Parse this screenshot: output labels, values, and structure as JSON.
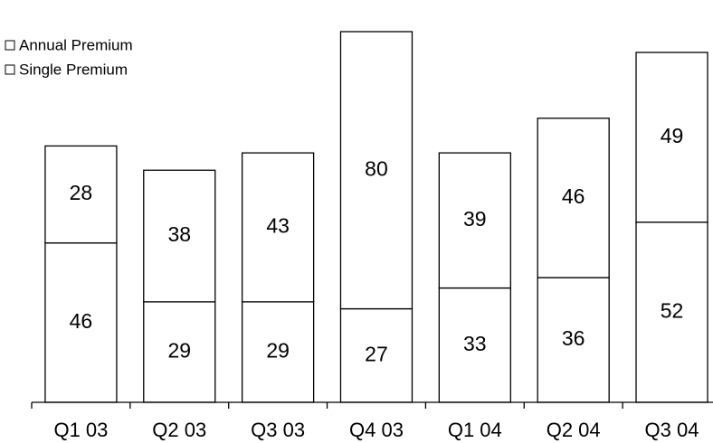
{
  "chart_data": {
    "type": "bar",
    "stacked": true,
    "categories": [
      "Q1 03",
      "Q2 03",
      "Q3 03",
      "Q4 03",
      "Q1 04",
      "Q2 04",
      "Q3 04"
    ],
    "series": [
      {
        "name": "Single Premium",
        "values": [
          46,
          29,
          29,
          27,
          33,
          36,
          52
        ]
      },
      {
        "name": "Annual Premium",
        "values": [
          28,
          38,
          43,
          80,
          39,
          46,
          49
        ]
      }
    ],
    "legend": {
      "placement": "top-left",
      "order": [
        "Annual Premium",
        "Single Premium"
      ]
    },
    "ylim": [
      0,
      107
    ],
    "grid": false,
    "colors": {
      "bar_fill": "#ffffff",
      "bar_stroke": "#000000"
    }
  }
}
